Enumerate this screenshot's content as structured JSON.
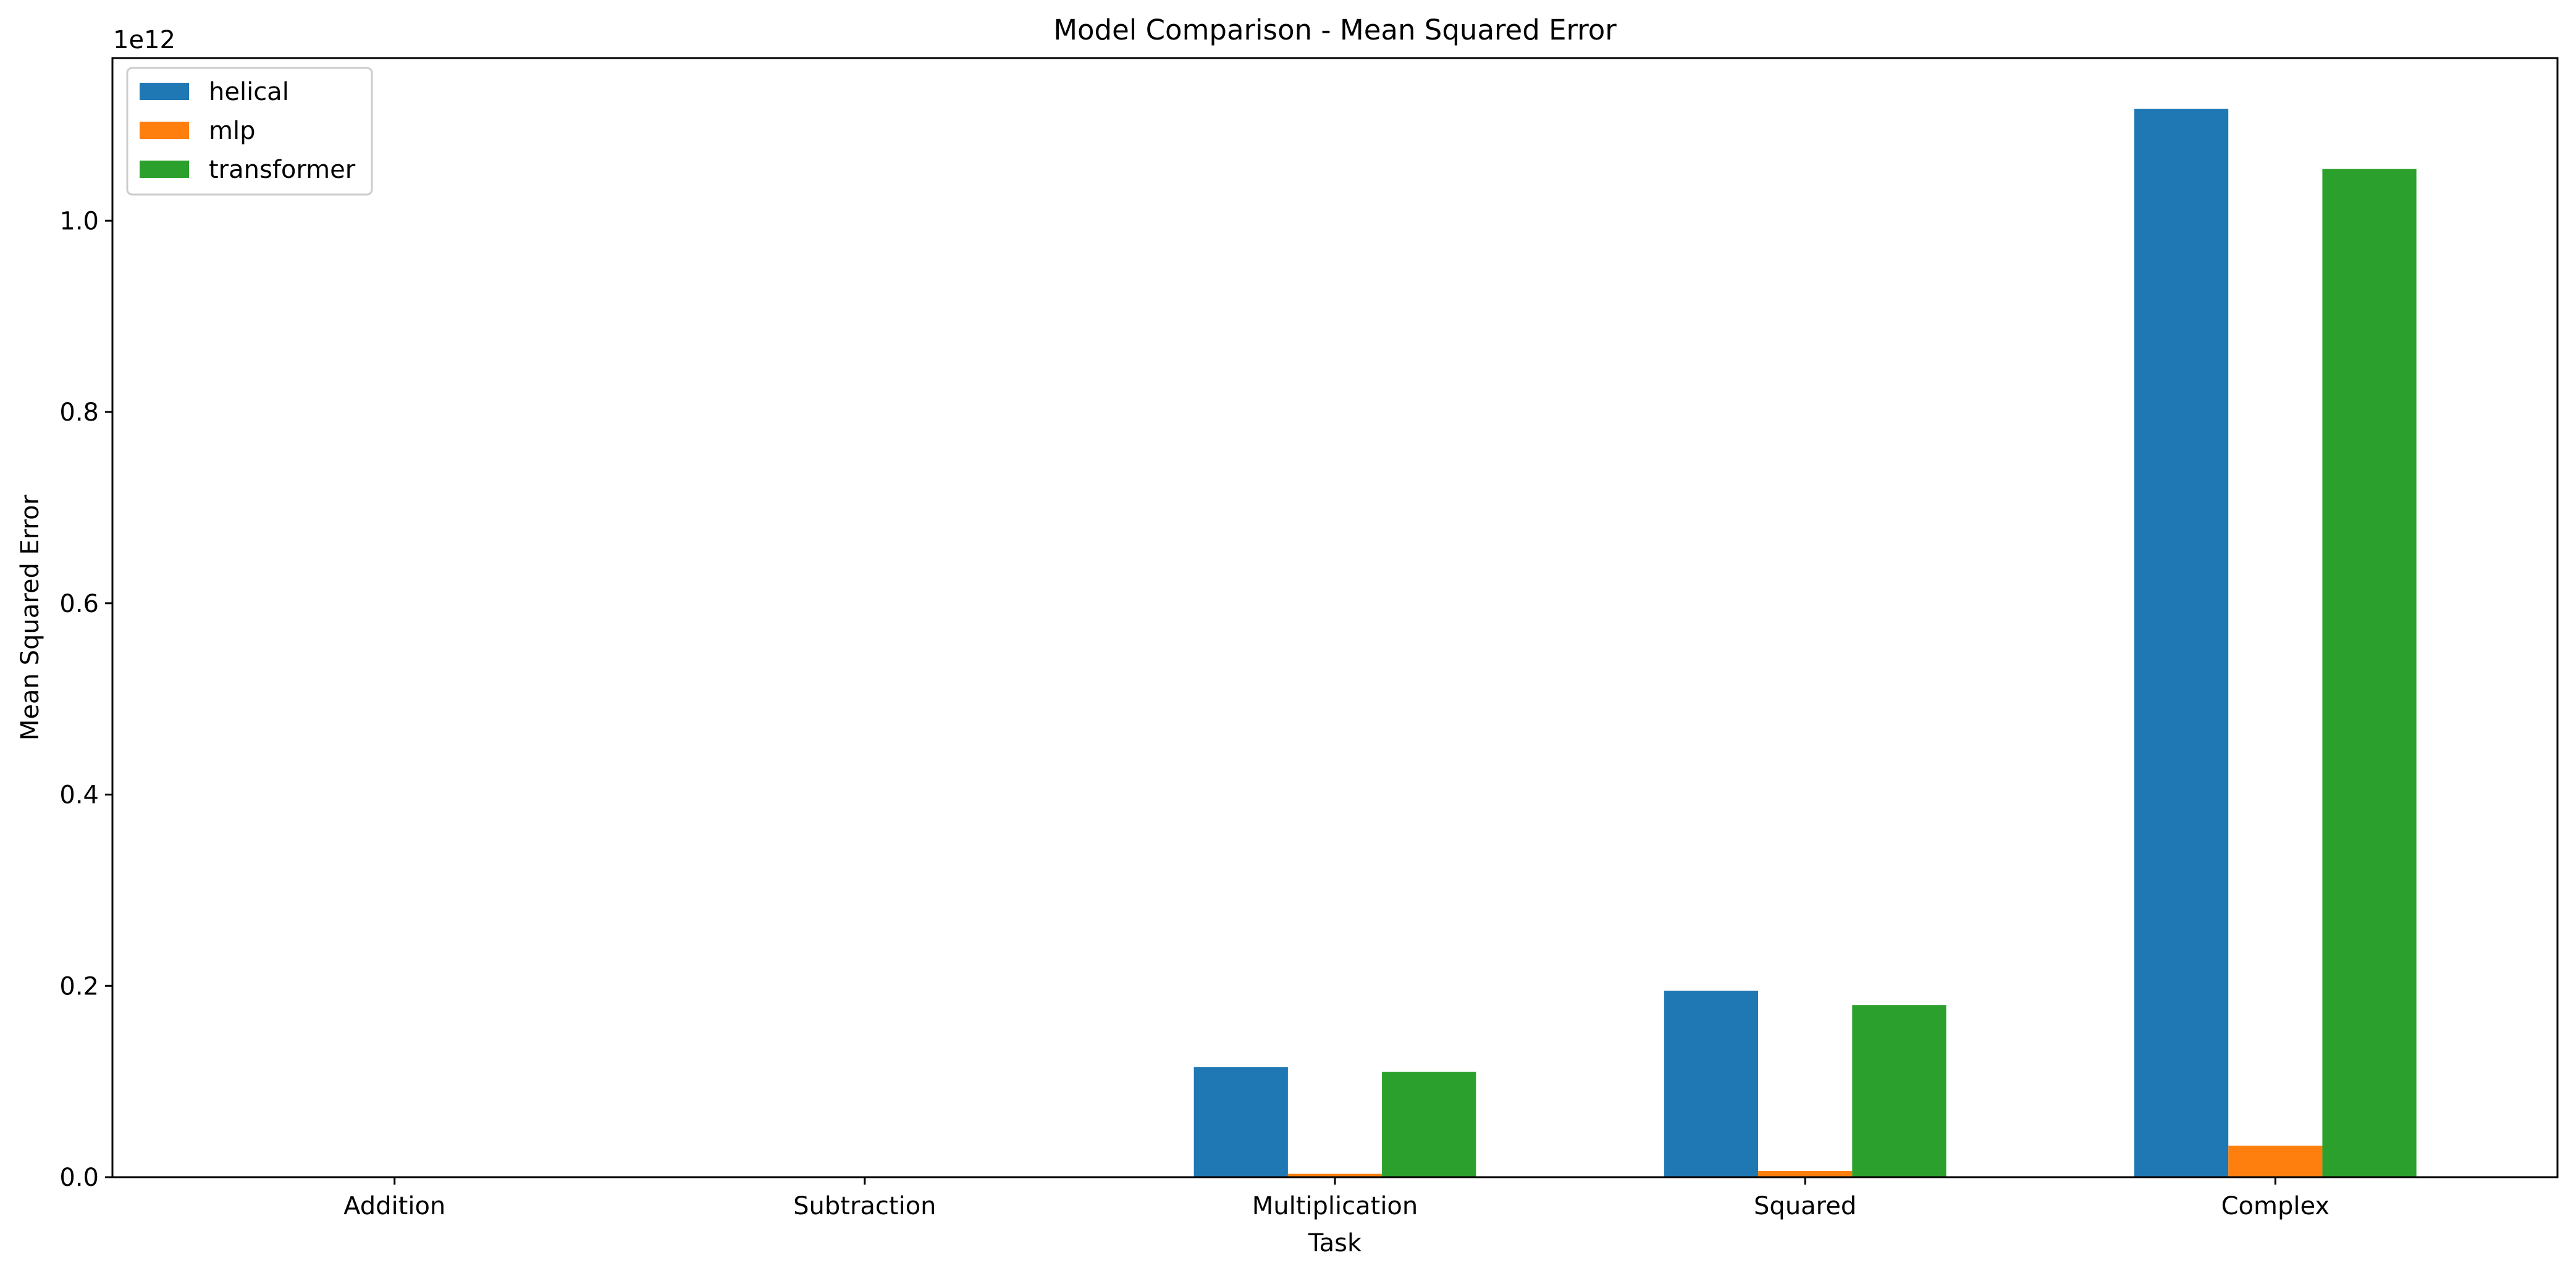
{
  "chart_data": {
    "type": "bar",
    "title": "Model Comparison - Mean Squared Error",
    "xlabel": "Task",
    "ylabel": "Mean Squared Error",
    "y_offset_label": "1e12",
    "categories": [
      "Addition",
      "Subtraction",
      "Multiplication",
      "Squared",
      "Complex"
    ],
    "series": [
      {
        "name": "helical",
        "color": "#1f77b4",
        "values": [
          0,
          0,
          115000000000,
          195000000000,
          1117000000000
        ]
      },
      {
        "name": "mlp",
        "color": "#ff7f0e",
        "values": [
          0,
          0,
          3500000000,
          6500000000,
          33000000000
        ]
      },
      {
        "name": "transformer",
        "color": "#2ca02c",
        "values": [
          0,
          0,
          110000000000,
          180000000000,
          1054000000000
        ]
      }
    ],
    "ylim": [
      0,
      1170000000000
    ],
    "yticks": [
      0,
      200000000000,
      400000000000,
      600000000000,
      800000000000,
      1000000000000
    ],
    "ytick_labels": [
      "0.0",
      "0.2",
      "0.4",
      "0.6",
      "0.8",
      "1.0"
    ],
    "legend_placement": "upper-left",
    "grid": false
  }
}
